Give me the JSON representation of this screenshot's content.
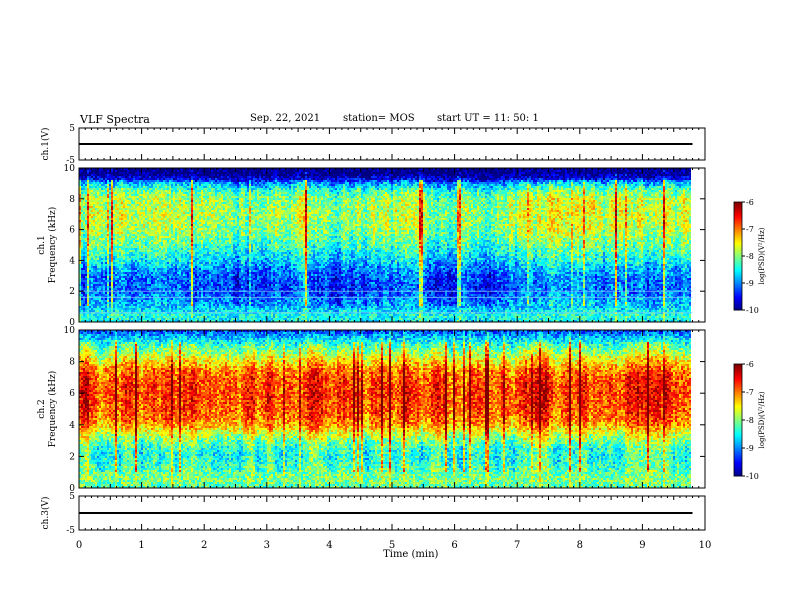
{
  "header": {
    "title": "VLF Spectra",
    "date": "Sep. 22, 2021",
    "station": "station= MOS",
    "start": "start  UT =   11: 50: 1"
  },
  "chart_data": [
    {
      "type": "line",
      "panel": "ch1-waveform",
      "ylabel": "ch.1(V)",
      "ylim": [
        -5,
        5
      ],
      "yticks": [
        "5",
        "-5"
      ],
      "x": [
        0,
        9.8
      ],
      "series": [
        {
          "values": [
            0,
            0
          ]
        }
      ]
    },
    {
      "type": "heatmap",
      "panel": "ch1-spectrogram",
      "ylabel_line1": "ch.1",
      "ylabel_line2": "Frequency (kHz)",
      "ylim": [
        0,
        10
      ],
      "yticks": [
        "0",
        "2",
        "4",
        "6",
        "8",
        "10"
      ],
      "xlim": [
        0,
        9.8
      ],
      "colorbar": {
        "label": "log(PSD)(V²/Hz)",
        "range": [
          -10,
          -6
        ],
        "ticks": [
          "-6",
          "-7",
          "-8",
          "-9",
          "-10"
        ]
      },
      "profile_khz": [
        0,
        0.5,
        1,
        1.5,
        2,
        2.5,
        3,
        3.5,
        4,
        5,
        6,
        7,
        8,
        8.5,
        9,
        9.3,
        9.6,
        10
      ],
      "profile_log_psd": [
        -8.5,
        -8.4,
        -8.8,
        -9.0,
        -9.2,
        -9.2,
        -9.1,
        -8.9,
        -8.6,
        -8.2,
        -7.9,
        -7.8,
        -7.9,
        -8.2,
        -8.8,
        -9.6,
        -10,
        -10
      ]
    },
    {
      "type": "heatmap",
      "panel": "ch2-spectrogram",
      "ylabel_line1": "ch.2",
      "ylabel_line2": "Frequency (kHz)",
      "ylim": [
        0,
        10
      ],
      "yticks": [
        "0",
        "2",
        "4",
        "6",
        "8",
        "10"
      ],
      "xlim": [
        0,
        9.8
      ],
      "colorbar": {
        "label": "log(PSD)(V²/Hz)",
        "range": [
          -10,
          -6
        ],
        "ticks": [
          "-6",
          "-7",
          "-8",
          "-9",
          "-10"
        ]
      },
      "profile_khz": [
        0,
        0.5,
        1,
        1.5,
        2,
        2.5,
        3,
        3.5,
        4,
        4.5,
        5,
        6,
        7,
        7.5,
        8,
        8.5,
        9,
        9.5,
        10
      ],
      "profile_log_psd": [
        -8.2,
        -8.0,
        -8.1,
        -8.3,
        -8.4,
        -8.3,
        -8.0,
        -7.6,
        -7.1,
        -6.9,
        -6.8,
        -6.7,
        -6.8,
        -7.0,
        -7.4,
        -7.8,
        -8.2,
        -8.7,
        -9.3
      ]
    },
    {
      "type": "line",
      "panel": "ch3-waveform",
      "ylabel": "ch.3(V)",
      "ylim": [
        -5,
        5
      ],
      "yticks": [
        "5",
        "-5"
      ],
      "x": [
        0,
        9.8
      ],
      "series": [
        {
          "values": [
            0,
            0
          ]
        }
      ]
    }
  ],
  "xaxis": {
    "label": "Time (min)",
    "range": [
      0,
      10
    ],
    "ticks": [
      "0",
      "1",
      "2",
      "3",
      "4",
      "5",
      "6",
      "7",
      "8",
      "9",
      "10"
    ]
  },
  "colors": {
    "axis": "#000000",
    "background": "#ffffff"
  }
}
